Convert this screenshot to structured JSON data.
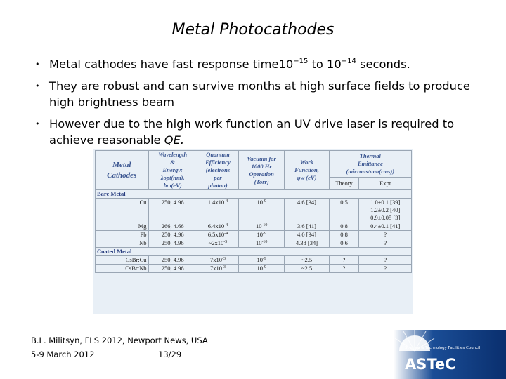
{
  "title": "Metal Photocathodes",
  "bullets": [
    [
      {
        "text": "Metal cathodes have fast response time10"
      },
      {
        "sup": "−15"
      },
      {
        "text": " to 10"
      },
      {
        "sup": "−14"
      },
      {
        "text": " seconds."
      }
    ],
    [
      {
        "text": "They are robust and can survive months at high surface fields to produce high brightness beam"
      }
    ],
    [
      {
        "text": "However due to the high work function an UV drive laser is required to achieve reasonable "
      },
      {
        "em": "QE."
      }
    ]
  ],
  "table": {
    "headers": [
      [
        "Metal",
        "Cathodes"
      ],
      [
        "Wavelength",
        "&",
        "Energy:",
        "λopt(nm),",
        "ħω(eV)"
      ],
      [
        "Quantum",
        "Efficiency",
        "(electrons",
        "per",
        "photon)"
      ],
      [
        "Vacuum for",
        "1000 Hr",
        "Operation",
        "(Torr)"
      ],
      [
        "Work",
        "Function,",
        "φw (eV)"
      ],
      [
        "Thermal",
        "Emittance",
        "(microns/mm(rms))"
      ]
    ],
    "subheaders": [
      "Theory",
      "Expt"
    ],
    "rows": [
      {
        "section": "Bare Metal"
      },
      {
        "cells": [
          "Cu",
          "250, 4.96",
          {
            "base": "1.4x10",
            "exp": "-4"
          },
          {
            "base": "10",
            "exp": "-9"
          },
          "4.6 [34]",
          "0.5",
          [
            "1.0±0.1 [39]",
            "1.2±0.2 [40]",
            "0.9±0.05 [3]"
          ]
        ]
      },
      {
        "cells": [
          "Mg",
          "266, 4.66",
          {
            "base": "6.4x10",
            "exp": "-4"
          },
          {
            "base": "10",
            "exp": "-10"
          },
          "3.6 [41]",
          "0.8",
          "0.4±0.1 [41]"
        ]
      },
      {
        "cells": [
          "Pb",
          "250, 4.96",
          {
            "base": "6.5x10",
            "exp": "-4"
          },
          {
            "base": "10",
            "exp": "-9"
          },
          "4.0 [34]",
          "0.8",
          "?"
        ]
      },
      {
        "cells": [
          "Nb",
          "250, 4.96",
          {
            "base": "~2x10",
            "exp": "-5"
          },
          {
            "base": "10",
            "exp": "-10"
          },
          "4.38 [34]",
          "0.6",
          "?"
        ]
      },
      {
        "section": "Coated Metal"
      },
      {
        "cells": [
          "CsBr:Cu",
          "250, 4.96",
          {
            "base": "7x10",
            "exp": "-3"
          },
          {
            "base": "10",
            "exp": "-9"
          },
          "~2.5",
          "?",
          "?"
        ]
      },
      {
        "cells": [
          "CsBr:Nb",
          "250, 4.96",
          {
            "base": "7x10",
            "exp": "-3"
          },
          {
            "base": "10",
            "exp": "-9"
          },
          "~2.5",
          "?",
          "?"
        ]
      }
    ]
  },
  "footer": {
    "author": "B.L. Militsyn, FLS 2012, Newport News, USA",
    "date": "5-9 March 2012",
    "page": "13/29"
  },
  "logo": {
    "council": "Science & Technology Facilities Council",
    "name": "ASTeC"
  }
}
